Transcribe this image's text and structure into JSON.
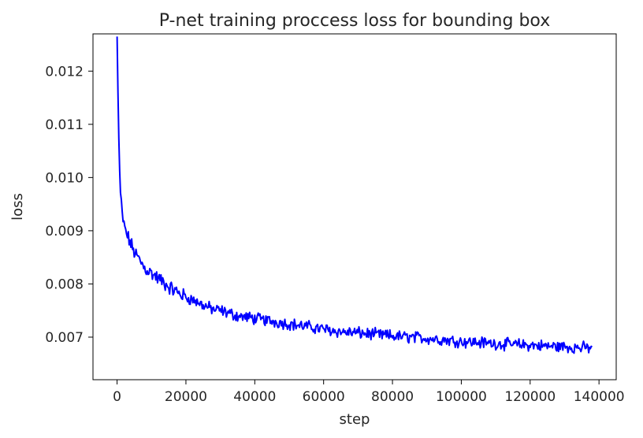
{
  "chart_data": {
    "type": "line",
    "title": "P-net training proccess loss for bounding box",
    "xlabel": "step",
    "ylabel": "loss",
    "xlim": [
      -7000,
      145000
    ],
    "ylim": [
      0.0062,
      0.0127
    ],
    "xticks": [
      0,
      20000,
      40000,
      60000,
      80000,
      100000,
      120000,
      140000
    ],
    "xtick_labels": [
      "0",
      "20000",
      "40000",
      "60000",
      "80000",
      "100000",
      "120000",
      "140000"
    ],
    "yticks": [
      0.007,
      0.008,
      0.009,
      0.01,
      0.011,
      0.012
    ],
    "ytick_labels": [
      "0.007",
      "0.008",
      "0.009",
      "0.010",
      "0.011",
      "0.012"
    ],
    "grid": false,
    "series": [
      {
        "color": "#0000ff",
        "x": [
          0,
          200,
          400,
          700,
          1000,
          1500,
          2000,
          3000,
          4000,
          5000,
          6000,
          7000,
          8000,
          9000,
          10000,
          12000,
          14000,
          16000,
          18000,
          20000,
          22000,
          25000,
          28000,
          30000,
          35000,
          40000,
          45000,
          50000,
          55000,
          60000,
          65000,
          70000,
          75000,
          80000,
          85000,
          90000,
          95000,
          100000,
          105000,
          110000,
          115000,
          120000,
          125000,
          130000,
          135000,
          138000
        ],
        "y": [
          0.01265,
          0.0118,
          0.011,
          0.0102,
          0.0097,
          0.0093,
          0.0091,
          0.0089,
          0.00875,
          0.0086,
          0.0085,
          0.0084,
          0.0083,
          0.00825,
          0.0082,
          0.0081,
          0.008,
          0.0079,
          0.00783,
          0.00775,
          0.0077,
          0.0076,
          0.00752,
          0.0075,
          0.0074,
          0.00735,
          0.0073,
          0.00725,
          0.0072,
          0.00715,
          0.0071,
          0.00708,
          0.00705,
          0.00702,
          0.007,
          0.00698,
          0.00695,
          0.00692,
          0.0069,
          0.00688,
          0.00686,
          0.00685,
          0.00683,
          0.00682,
          0.0068,
          0.0068
        ]
      }
    ]
  }
}
